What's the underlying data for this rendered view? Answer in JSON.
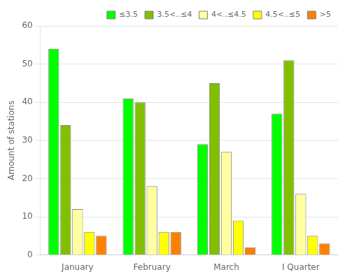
{
  "chart_data": {
    "type": "bar",
    "categories": [
      "January",
      "February",
      "March",
      "I Quarter"
    ],
    "series": [
      {
        "name": "≤3.5",
        "color": "#00FF00",
        "values": [
          54,
          41,
          29,
          37
        ]
      },
      {
        "name": "3.5<..≤4",
        "color": "#80C000",
        "values": [
          34,
          40,
          45,
          51
        ]
      },
      {
        "name": "4<..≤4.5",
        "color": "#FFFFA0",
        "values": [
          12,
          18,
          27,
          16
        ]
      },
      {
        "name": "4.5<..≤5",
        "color": "#FFFF00",
        "values": [
          6,
          6,
          9,
          5
        ]
      },
      {
        "name": ">5",
        "color": "#FF8000",
        "values": [
          5,
          6,
          2,
          3
        ]
      }
    ],
    "ylabel": "Amount of stations",
    "ylim": [
      0,
      60
    ],
    "yticks": [
      0,
      10,
      20,
      30,
      40,
      50,
      60
    ],
    "grid": true,
    "legend": "upper right"
  }
}
